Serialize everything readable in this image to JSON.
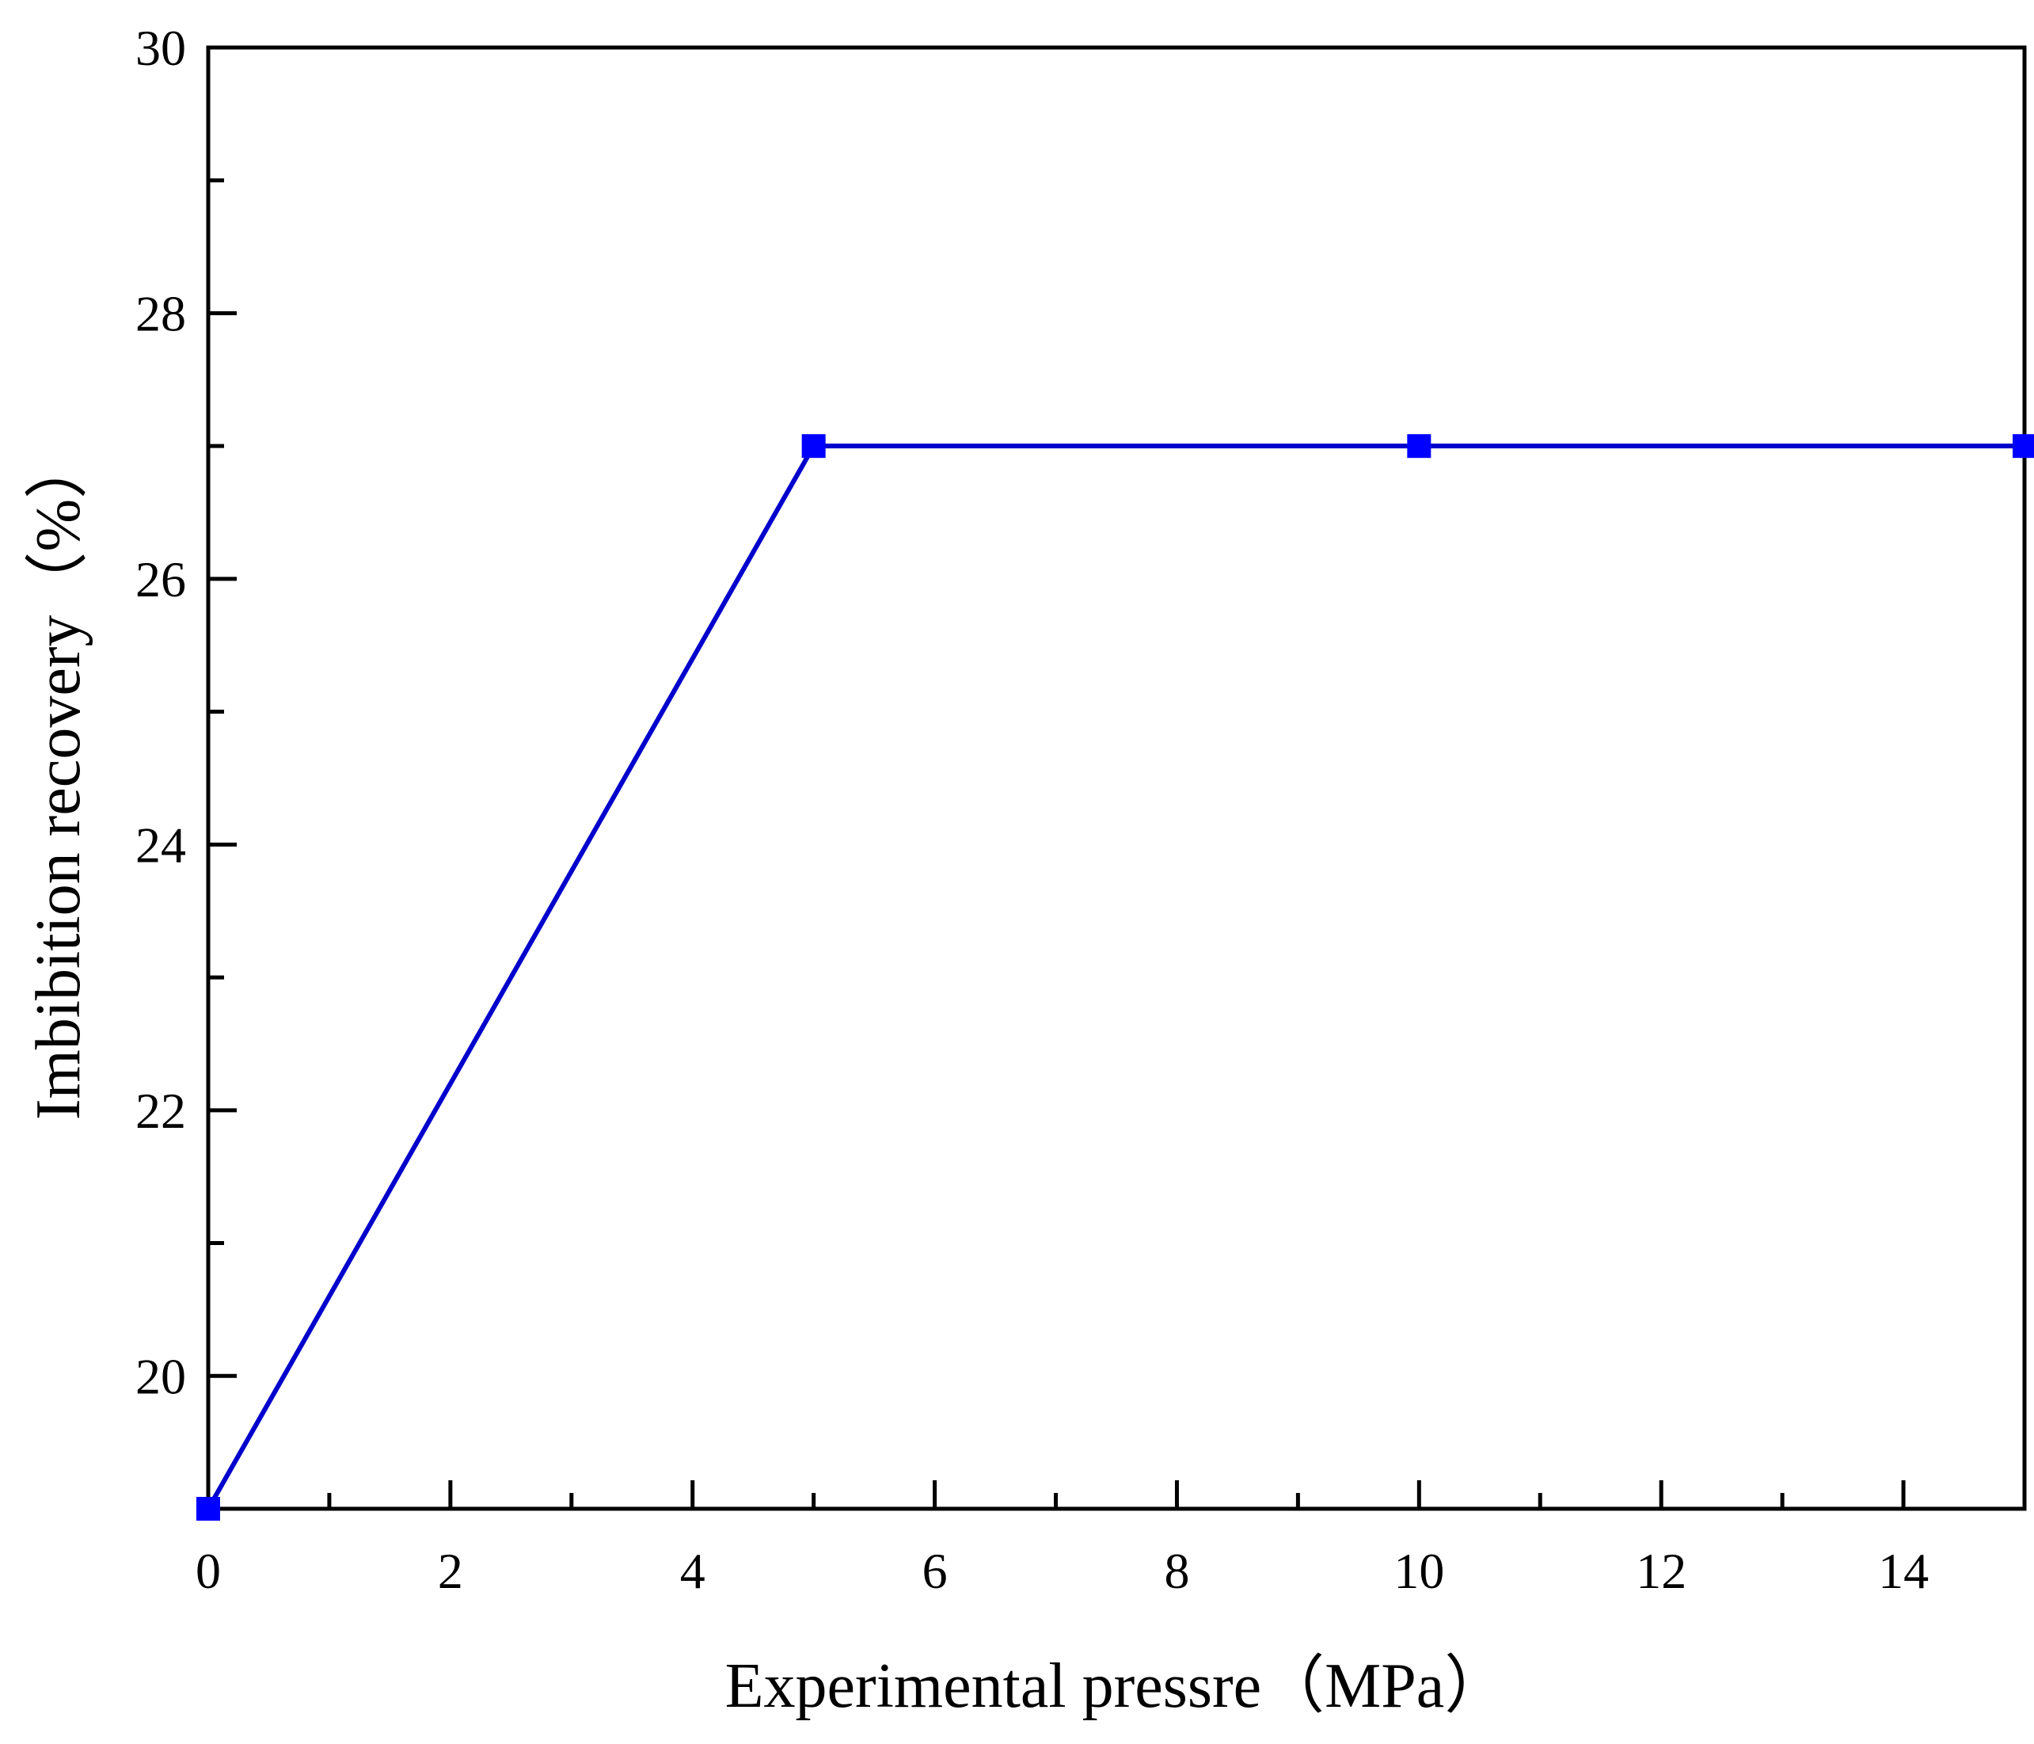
{
  "chart_data": {
    "type": "line",
    "title": "",
    "xlabel": "Experimental pressre（MPa）",
    "ylabel": "Imbibition recovery（%）",
    "xlim": [
      0,
      15
    ],
    "ylim": [
      19,
      30
    ],
    "x_major_ticks": [
      0,
      2,
      4,
      6,
      8,
      10,
      12,
      14
    ],
    "x_tick_labels": [
      "0",
      "2",
      "4",
      "6",
      "8",
      "10",
      "12",
      "14"
    ],
    "x_minor_ticks": [
      1,
      3,
      5,
      7,
      9,
      11,
      13
    ],
    "y_major_ticks": [
      20,
      22,
      24,
      26,
      28,
      30
    ],
    "y_tick_labels": [
      "20",
      "22",
      "24",
      "26",
      "28",
      "30"
    ],
    "y_minor_ticks": [
      21,
      23,
      25,
      27,
      29
    ],
    "grid": false,
    "legend": "none",
    "series": [
      {
        "name": "Imbibition recovery",
        "color": "#0000ff",
        "line_color": "#0000cc",
        "marker": "square",
        "x": [
          0,
          5,
          10,
          15
        ],
        "y": [
          19,
          27,
          27,
          27
        ]
      }
    ]
  }
}
